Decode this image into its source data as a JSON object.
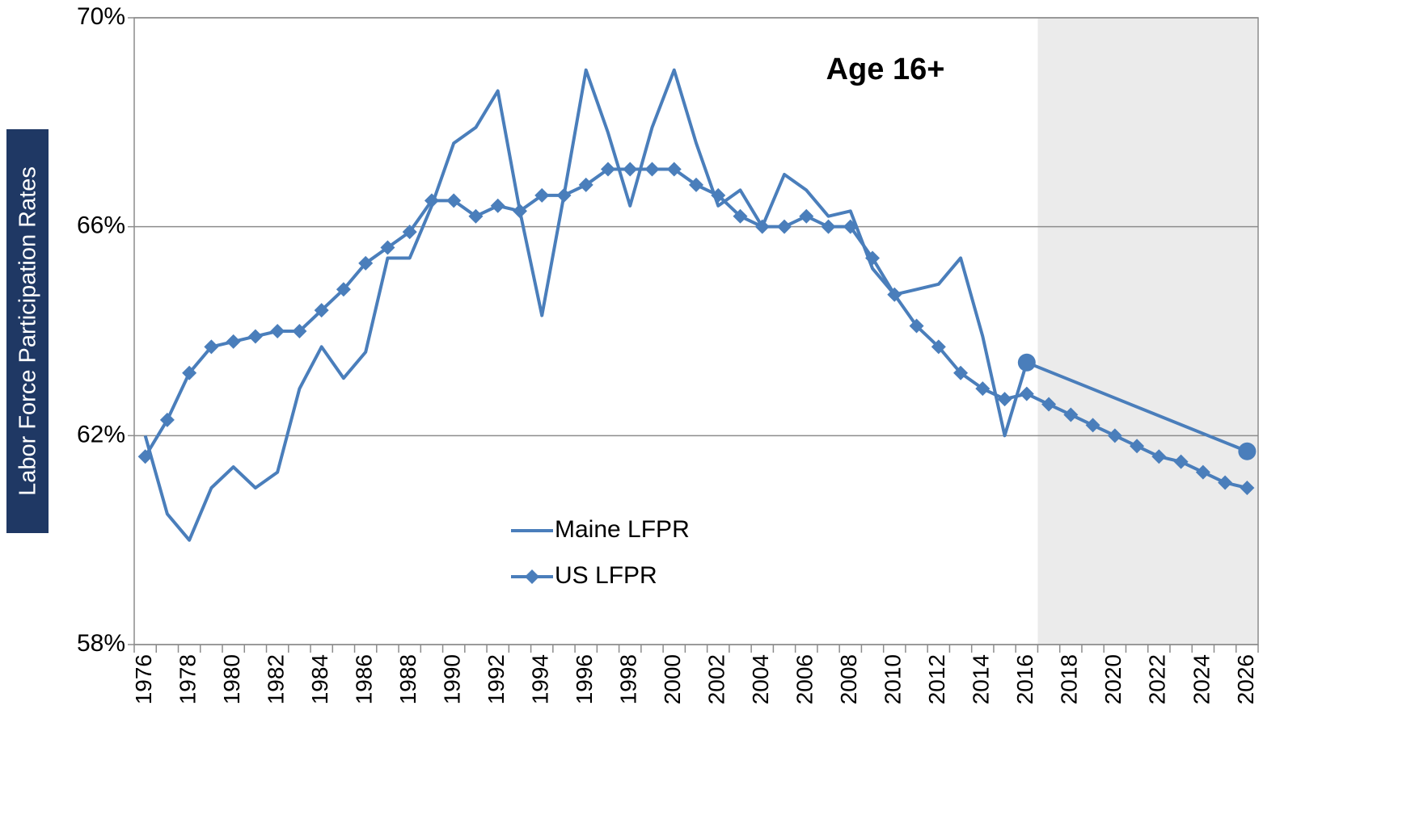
{
  "chart_data": {
    "type": "line",
    "title": "Age 16+",
    "y_label": "Labor Force Participation Rates",
    "categories": [
      "1976",
      null,
      "1978",
      null,
      "1980",
      null,
      "1982",
      null,
      "1984",
      null,
      "1986",
      null,
      "1988",
      null,
      "1990",
      null,
      "1992",
      null,
      "1994",
      null,
      "1996",
      null,
      "1998",
      null,
      "2000",
      null,
      "2002",
      null,
      "2004",
      null,
      "2006",
      null,
      "2008",
      null,
      "2010",
      null,
      "2012",
      null,
      "2014",
      null,
      "2016",
      null,
      "2018",
      null,
      "2020",
      null,
      "2022",
      null,
      "2024",
      null,
      "2026"
    ],
    "series": [
      {
        "name": "Maine LFPR",
        "color": "#4a7ebb",
        "marker": "none",
        "span_gaps": true,
        "values": [
          62.0,
          60.5,
          60.0,
          61.0,
          61.4,
          61.0,
          61.3,
          62.9,
          63.7,
          63.1,
          63.6,
          65.4,
          65.4,
          66.4,
          67.6,
          67.9,
          68.6,
          66.3,
          64.3,
          66.6,
          69.0,
          67.8,
          66.4,
          67.9,
          69.0,
          67.6,
          66.4,
          66.7,
          66.0,
          67.0,
          66.7,
          66.2,
          66.3,
          65.2,
          64.7,
          64.8,
          64.9,
          65.4,
          63.9,
          62.0,
          63.4,
          null,
          null,
          null,
          null,
          null,
          null,
          null,
          null,
          null,
          61.7
        ]
      },
      {
        "name": "US LFPR",
        "color": "#4a7ebb",
        "marker": "diamond",
        "values": [
          61.6,
          62.3,
          63.2,
          63.7,
          63.8,
          63.9,
          64.0,
          64.0,
          64.4,
          64.8,
          65.3,
          65.6,
          65.9,
          66.5,
          66.5,
          66.2,
          66.4,
          66.3,
          66.6,
          66.6,
          66.8,
          67.1,
          67.1,
          67.1,
          67.1,
          66.8,
          66.6,
          66.2,
          66.0,
          66.0,
          66.2,
          66.0,
          66.0,
          65.4,
          64.7,
          64.1,
          63.7,
          63.2,
          62.9,
          62.7,
          62.8,
          62.6,
          62.4,
          62.2,
          62.0,
          61.8,
          61.6,
          61.5,
          61.3,
          61.1,
          61.0
        ]
      }
    ],
    "ylim": [
      58,
      70
    ],
    "yticks": [
      {
        "value": 58,
        "label": "58%"
      },
      {
        "value": 62,
        "label": "62%"
      },
      {
        "value": 66,
        "label": "66%"
      },
      {
        "value": 70,
        "label": "70%"
      }
    ],
    "grid": true,
    "legend": "center"
  }
}
